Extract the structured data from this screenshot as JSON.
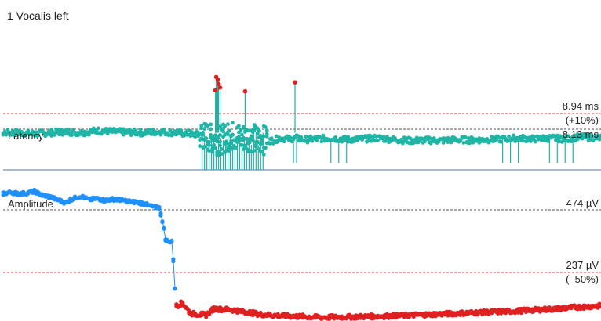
{
  "title": "1 Vocalis left",
  "chart_data": [
    {
      "type": "scatter",
      "name": "latency-panel",
      "label": "Latency",
      "reference_lines": [
        {
          "key": "upper",
          "label": "8.94 ms",
          "sublabel": "(+10%)",
          "value": 8.94,
          "style": "dashed",
          "color": "#e04040"
        },
        {
          "key": "baseline",
          "label": "8.13 ms",
          "value": 8.13,
          "style": "dashed",
          "color": "#555555"
        }
      ],
      "ylim": [
        7.5,
        9.3
      ],
      "xlim": [
        0,
        766
      ],
      "series": [
        {
          "color": "#1fb5a6",
          "approx_value": 8.1,
          "note_points": [
            [
              0,
              8.2
            ],
            [
              20,
              8.2
            ],
            [
              40,
              8.18
            ],
            [
              60,
              8.2
            ],
            [
              80,
              8.22
            ],
            [
              100,
              8.2
            ],
            [
              120,
              8.24
            ],
            [
              140,
              8.22
            ],
            [
              160,
              8.21
            ],
            [
              180,
              8.2
            ],
            [
              200,
              8.22
            ],
            [
              220,
              8.2
            ],
            [
              240,
              8.18
            ],
            [
              255,
              8.15
            ],
            [
              265,
              8.1
            ],
            [
              275,
              8.05
            ],
            [
              285,
              8.1
            ],
            [
              295,
              8.15
            ],
            [
              305,
              8.1
            ],
            [
              315,
              8.12
            ],
            [
              325,
              8.08
            ],
            [
              335,
              8.06
            ],
            [
              345,
              8.05
            ],
            [
              355,
              8.1
            ],
            [
              365,
              8.08
            ],
            [
              375,
              8.1
            ],
            [
              385,
              8.07
            ],
            [
              400,
              8.08
            ],
            [
              420,
              8.1
            ],
            [
              440,
              8.07
            ],
            [
              460,
              8.08
            ],
            [
              480,
              8.1
            ],
            [
              500,
              8.07
            ],
            [
              520,
              8.05
            ],
            [
              540,
              8.06
            ],
            [
              560,
              8.05
            ],
            [
              580,
              8.07
            ],
            [
              600,
              8.06
            ],
            [
              620,
              8.07
            ],
            [
              640,
              8.08
            ],
            [
              660,
              8.1
            ],
            [
              680,
              8.08
            ],
            [
              700,
              8.1
            ],
            [
              720,
              8.08
            ],
            [
              740,
              8.12
            ],
            [
              766,
              8.1
            ]
          ]
        },
        {
          "color": "#e02020",
          "name": "",
          "outliers": [
            [
              273,
              9.25
            ],
            [
              275,
              9.2
            ],
            [
              276,
              9.12
            ],
            [
              278,
              9.05
            ],
            [
              272,
              9.0
            ],
            [
              310,
              8.98
            ],
            [
              374,
              9.15
            ]
          ]
        }
      ]
    },
    {
      "type": "scatter",
      "name": "amplitude-panel",
      "label": "Amplitude",
      "reference_lines": [
        {
          "key": "baseline",
          "label": "474 µV",
          "value": 474,
          "style": "dashed",
          "color": "#555555"
        },
        {
          "key": "lower",
          "label": "237 µV",
          "sublabel": "(–50%)",
          "value": 237,
          "style": "dashed",
          "color": "#e04040"
        }
      ],
      "ylim": [
        100,
        560
      ],
      "xlim": [
        0,
        766
      ],
      "series": [
        {
          "color": "#1e90ff",
          "points": [
            [
              0,
              520
            ],
            [
              10,
              525
            ],
            [
              20,
              520
            ],
            [
              30,
              522
            ],
            [
              40,
              528
            ],
            [
              50,
              515
            ],
            [
              60,
              510
            ],
            [
              70,
              500
            ],
            [
              80,
              490
            ],
            [
              90,
              505
            ],
            [
              100,
              512
            ],
            [
              110,
              500
            ],
            [
              120,
              505
            ],
            [
              130,
              498
            ],
            [
              140,
              502
            ],
            [
              150,
              500
            ],
            [
              160,
              495
            ],
            [
              170,
              492
            ],
            [
              180,
              488
            ],
            [
              190,
              478
            ],
            [
              200,
              474
            ],
            [
              205,
              420
            ],
            [
              208,
              370
            ],
            [
              212,
              360
            ],
            [
              216,
              365
            ],
            [
              218,
              300
            ],
            [
              220,
              210
            ]
          ]
        },
        {
          "color": "#e02020",
          "points": [
            [
              222,
              150
            ],
            [
              230,
              160
            ],
            [
              240,
              125
            ],
            [
              260,
              120
            ],
            [
              270,
              140
            ],
            [
              290,
              138
            ],
            [
              310,
              130
            ],
            [
              330,
              122
            ],
            [
              350,
              118
            ],
            [
              370,
              116
            ],
            [
              390,
              114
            ],
            [
              410,
              112
            ],
            [
              430,
              113
            ],
            [
              450,
              114
            ],
            [
              470,
              115
            ],
            [
              490,
              116
            ],
            [
              510,
              118
            ],
            [
              530,
              120
            ],
            [
              550,
              122
            ],
            [
              570,
              124
            ],
            [
              590,
              126
            ],
            [
              610,
              128
            ],
            [
              630,
              130
            ],
            [
              650,
              132
            ],
            [
              670,
              135
            ],
            [
              690,
              138
            ],
            [
              710,
              140
            ],
            [
              730,
              145
            ],
            [
              750,
              148
            ],
            [
              766,
              150
            ]
          ]
        }
      ]
    }
  ]
}
